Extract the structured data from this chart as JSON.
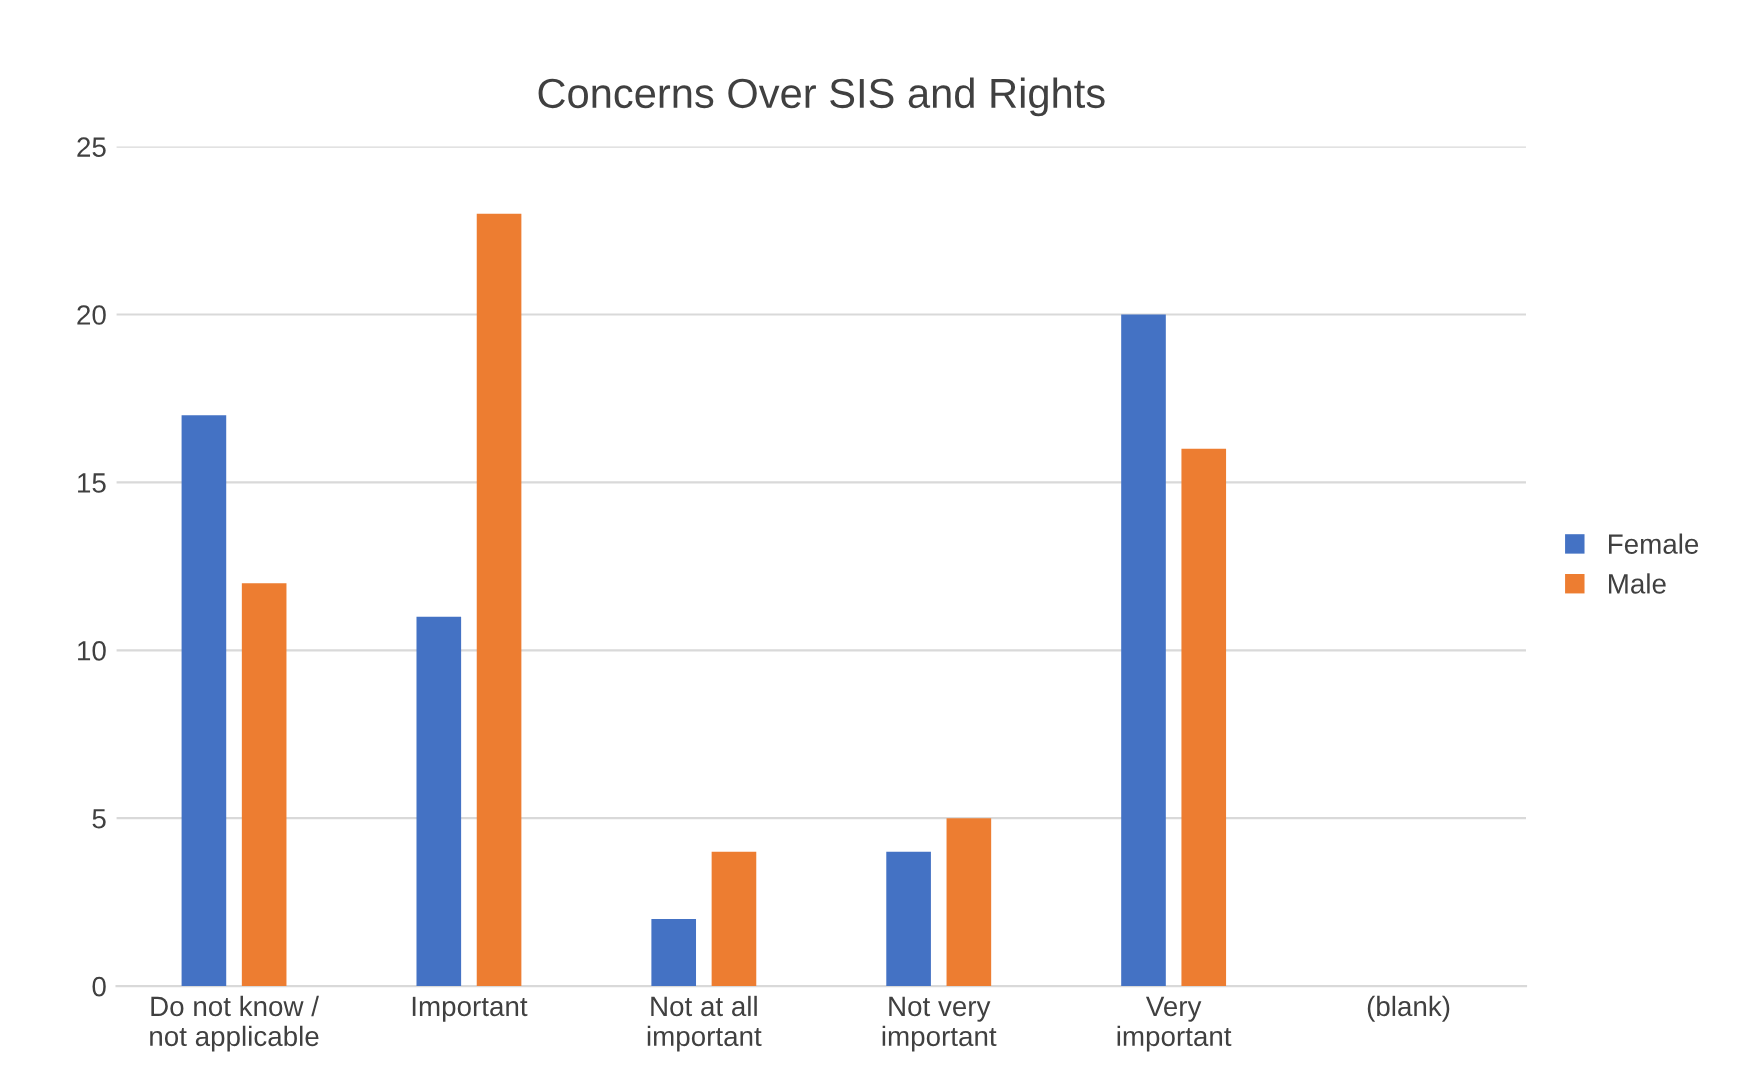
{
  "chart_data": {
    "type": "bar",
    "title": "Concerns Over SIS and Rights",
    "categories": [
      "Do not know /\nnot applicable",
      "Important",
      "Not at all\nimportant",
      "Not very\nimportant",
      "Very\nimportant",
      "(blank)"
    ],
    "series": [
      {
        "name": "Female",
        "color": "#4472c4",
        "values": [
          17,
          11,
          2,
          4,
          20,
          null
        ]
      },
      {
        "name": "Male",
        "color": "#ed7d31",
        "values": [
          12,
          23,
          4,
          5,
          16,
          null
        ]
      }
    ],
    "ylim": [
      0,
      25
    ],
    "yticks": [
      0,
      5,
      10,
      15,
      20,
      25
    ],
    "grid": "y",
    "legend": "right"
  }
}
